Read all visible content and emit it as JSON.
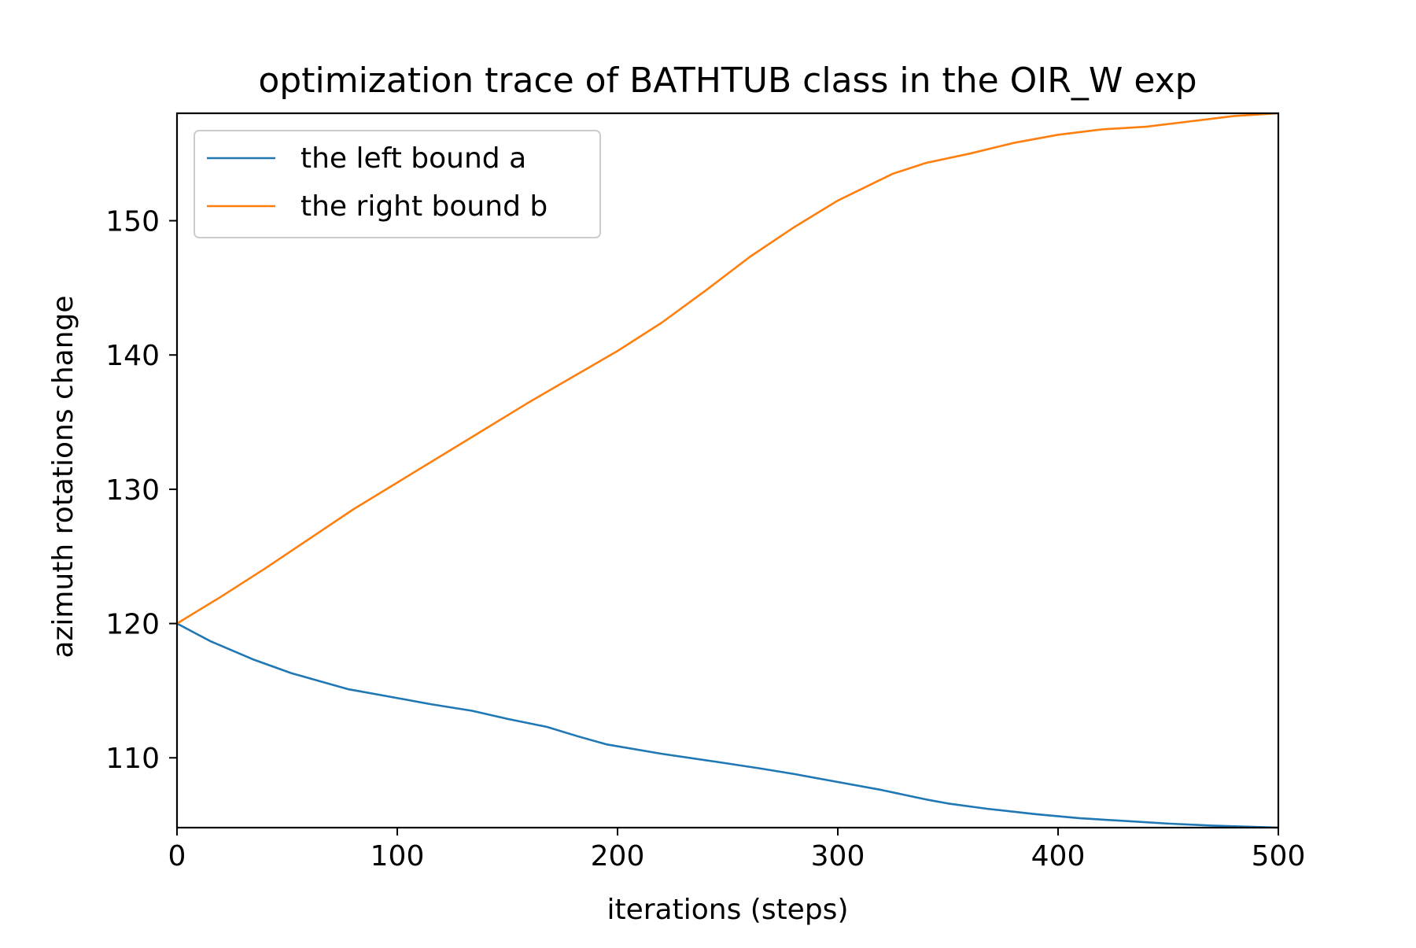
{
  "chart_data": {
    "type": "line",
    "title": "optimization trace of BATHTUB class in the OIR_W exp",
    "xlabel": "iterations (steps)",
    "ylabel": "azimuth rotations change",
    "xlim": [
      0,
      500
    ],
    "ylim": [
      104.8,
      158.0
    ],
    "xticks": [
      0,
      100,
      200,
      300,
      400,
      500
    ],
    "yticks": [
      110,
      120,
      130,
      140,
      150
    ],
    "grid": false,
    "legend_position": "upper left",
    "series": [
      {
        "name": "the left bound a",
        "color": "#1f77b4",
        "x": [
          0,
          15,
          35,
          52,
          65,
          78,
          95,
          115,
          134,
          150,
          168,
          182,
          195,
          220,
          245,
          265,
          280,
          300,
          320,
          340,
          350,
          368,
          390,
          410,
          430,
          450,
          470,
          490,
          500
        ],
        "y": [
          120.0,
          118.7,
          117.3,
          116.3,
          115.7,
          115.1,
          114.6,
          114.0,
          113.5,
          112.9,
          112.3,
          111.6,
          111.0,
          110.3,
          109.7,
          109.2,
          108.8,
          108.2,
          107.6,
          106.9,
          106.6,
          106.2,
          105.8,
          105.5,
          105.3,
          105.1,
          104.95,
          104.85,
          104.8
        ]
      },
      {
        "name": "the right bound b",
        "color": "#ff7f0e",
        "x": [
          0,
          20,
          40,
          60,
          80,
          100,
          120,
          140,
          160,
          180,
          200,
          220,
          240,
          260,
          280,
          300,
          315,
          325,
          340,
          360,
          380,
          400,
          420,
          440,
          460,
          480,
          500
        ],
        "y": [
          120.0,
          122.0,
          124.1,
          126.3,
          128.5,
          130.5,
          132.5,
          134.5,
          136.5,
          138.4,
          140.3,
          142.4,
          144.8,
          147.3,
          149.5,
          151.5,
          152.7,
          153.5,
          154.3,
          155.0,
          155.8,
          156.4,
          156.8,
          157.0,
          157.4,
          157.8,
          158.0
        ]
      }
    ]
  }
}
